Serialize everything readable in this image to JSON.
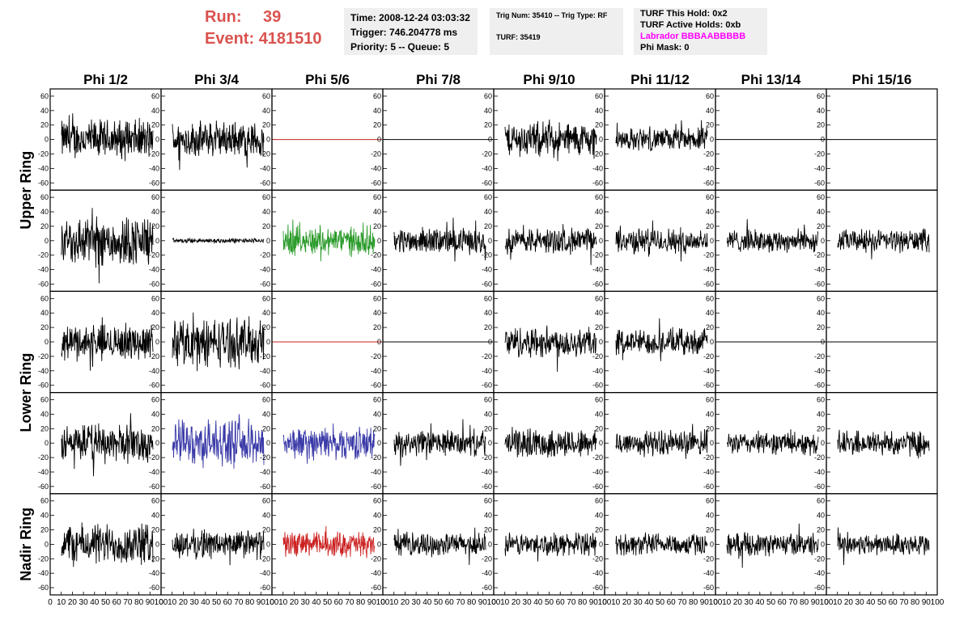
{
  "header": {
    "run_label": "Run:",
    "run_value": "39",
    "event_label": "Event:",
    "event_value": "4181510",
    "time": "Time: 2008-12-24 03:03:32",
    "trigger": "Trigger: 746.204778 ms",
    "priority": "Priority: 5 -- Queue: 5",
    "trig_num": "Trig Num: 35410 -- Trig Type: RF",
    "turf": "TURF: 35419",
    "turf_hold": "TURF This Hold: 0x2",
    "turf_active": "TURF Active Holds: 0xb",
    "labrador": "Labrador BBBAABBBBB",
    "phi_mask": "Phi Mask: 0"
  },
  "colors": {
    "header_red": "#d9534f",
    "labrador": "#ff00ff",
    "panel_bg": "#efefef",
    "trace_black": "#000000",
    "trace_red": "#cc2222",
    "trace_green": "#2a9a2a",
    "trace_blue": "#3a3aa8"
  },
  "chart_data": {
    "type": "line",
    "columns": [
      "Phi 1/2",
      "Phi 3/4",
      "Phi 5/6",
      "Phi 7/8",
      "Phi 9/10",
      "Phi 11/12",
      "Phi 13/14",
      "Phi 15/16"
    ],
    "row_labels": [
      "Upper Ring",
      "Lower Ring",
      "Nadir Ring"
    ],
    "ylim": [
      -70,
      70
    ],
    "y_ticks": [
      -60,
      -40,
      -20,
      0,
      20,
      40,
      60
    ],
    "xlim": [
      0,
      100
    ],
    "x_tick_labels": [
      "0",
      "10",
      "20",
      "30",
      "40",
      "50",
      "60",
      "70",
      "80",
      "90",
      "100"
    ],
    "rows": [
      [
        {
          "amp": 25,
          "color": "black"
        },
        {
          "amp": 22,
          "color": "black"
        },
        {
          "amp": 0,
          "color": "red"
        },
        {
          "amp": 0,
          "color": "black"
        },
        {
          "amp": 22,
          "color": "black"
        },
        {
          "amp": 14,
          "color": "black"
        },
        {
          "amp": 0,
          "color": "black"
        },
        {
          "amp": 0,
          "color": "black"
        }
      ],
      [
        {
          "amp": 32,
          "color": "black"
        },
        {
          "amp": 3,
          "color": "black"
        },
        {
          "amp": 18,
          "color": "green"
        },
        {
          "amp": 16,
          "color": "black"
        },
        {
          "amp": 16,
          "color": "black"
        },
        {
          "amp": 16,
          "color": "black"
        },
        {
          "amp": 14,
          "color": "black"
        },
        {
          "amp": 14,
          "color": "black"
        }
      ],
      [
        {
          "amp": 22,
          "color": "black"
        },
        {
          "amp": 30,
          "color": "black"
        },
        {
          "amp": 0,
          "color": "red"
        },
        {
          "amp": 0,
          "color": "black"
        },
        {
          "amp": 20,
          "color": "black"
        },
        {
          "amp": 16,
          "color": "black"
        },
        {
          "amp": 0,
          "color": "black"
        },
        {
          "amp": 0,
          "color": "black"
        }
      ],
      [
        {
          "amp": 24,
          "color": "black"
        },
        {
          "amp": 28,
          "color": "blue"
        },
        {
          "amp": 20,
          "color": "blue"
        },
        {
          "amp": 16,
          "color": "black"
        },
        {
          "amp": 18,
          "color": "black"
        },
        {
          "amp": 16,
          "color": "black"
        },
        {
          "amp": 14,
          "color": "black"
        },
        {
          "amp": 16,
          "color": "black"
        }
      ],
      [
        {
          "amp": 26,
          "color": "black"
        },
        {
          "amp": 18,
          "color": "black"
        },
        {
          "amp": 16,
          "color": "red"
        },
        {
          "amp": 14,
          "color": "black"
        },
        {
          "amp": 14,
          "color": "black"
        },
        {
          "amp": 14,
          "color": "black"
        },
        {
          "amp": 14,
          "color": "black"
        },
        {
          "amp": 14,
          "color": "black"
        }
      ]
    ]
  }
}
